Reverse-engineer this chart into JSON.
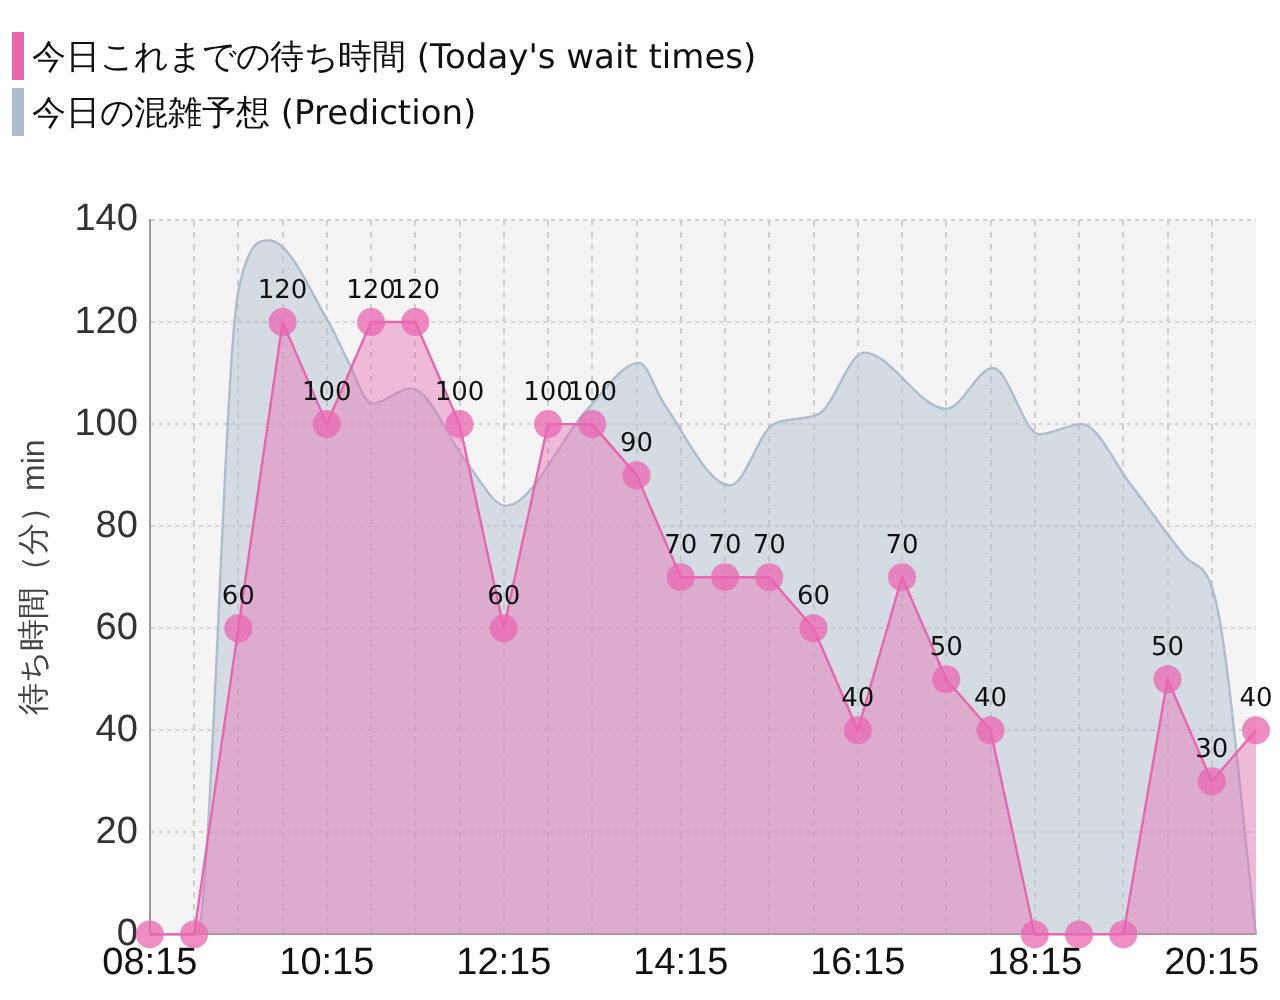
{
  "chart_data": {
    "type": "area",
    "ylabel": "待ち時間（分）min",
    "xlim": [
      8.25,
      20.75
    ],
    "ylim": [
      0,
      140
    ],
    "xticks": [
      {
        "value": 8.25,
        "label": "08:15"
      },
      {
        "value": 8.75,
        "label": null
      },
      {
        "value": 9.25,
        "label": null
      },
      {
        "value": 9.75,
        "label": null
      },
      {
        "value": 10.25,
        "label": "10:15"
      },
      {
        "value": 10.75,
        "label": null
      },
      {
        "value": 11.25,
        "label": null
      },
      {
        "value": 11.75,
        "label": null
      },
      {
        "value": 12.25,
        "label": "12:15"
      },
      {
        "value": 12.75,
        "label": null
      },
      {
        "value": 13.25,
        "label": null
      },
      {
        "value": 13.75,
        "label": null
      },
      {
        "value": 14.25,
        "label": "14:15"
      },
      {
        "value": 14.75,
        "label": null
      },
      {
        "value": 15.25,
        "label": null
      },
      {
        "value": 15.75,
        "label": null
      },
      {
        "value": 16.25,
        "label": "16:15"
      },
      {
        "value": 16.75,
        "label": null
      },
      {
        "value": 17.25,
        "label": null
      },
      {
        "value": 17.75,
        "label": null
      },
      {
        "value": 18.25,
        "label": "18:15"
      },
      {
        "value": 18.75,
        "label": null
      },
      {
        "value": 19.25,
        "label": null
      },
      {
        "value": 19.75,
        "label": null
      },
      {
        "value": 20.25,
        "label": "20:15"
      }
    ],
    "yticks": [
      0,
      20,
      40,
      60,
      80,
      100,
      120,
      140
    ],
    "grid": true,
    "legend": "top left",
    "series": [
      {
        "name": "今日これまでの待ち時間 (Today's wait times)",
        "color": "#e965b0",
        "marker": "circle",
        "x": [
          8.25,
          8.75,
          9.25,
          9.75,
          10.25,
          10.75,
          11.25,
          11.75,
          12.25,
          12.75,
          13.25,
          13.75,
          14.25,
          14.75,
          15.25,
          15.75,
          16.25,
          16.75,
          17.25,
          17.75,
          18.25,
          18.75,
          19.25,
          19.75,
          20.25,
          20.75
        ],
        "values": [
          0,
          0,
          60,
          120,
          100,
          120,
          120,
          100,
          60,
          100,
          100,
          90,
          70,
          70,
          70,
          60,
          40,
          70,
          50,
          40,
          0,
          0,
          0,
          50,
          30,
          40
        ],
        "value_labels": [
          null,
          null,
          "60",
          "120",
          "100",
          "120",
          "120",
          "100",
          "60",
          "100",
          "100",
          "90",
          "70",
          "70",
          "70",
          "60",
          "40",
          "70",
          "50",
          "40",
          null,
          null,
          null,
          "50",
          "30",
          "40"
        ]
      },
      {
        "name": "今日の混雑予想 (Prediction)",
        "color": "#aebdcc",
        "marker": "none",
        "x": [
          8.25,
          8.78,
          9.25,
          9.6,
          10.27,
          10.5,
          10.76,
          11.2,
          11.85,
          12.27,
          13.2,
          13.78,
          14.06,
          14.81,
          15.3,
          15.81,
          16.32,
          17.25,
          17.78,
          18.3,
          18.78,
          19.34,
          19.95,
          20.3,
          20.75
        ],
        "values": [
          0,
          0,
          126,
          136,
          120,
          112,
          104,
          107,
          92,
          84,
          103,
          112,
          104,
          88,
          100,
          102,
          114,
          103,
          111,
          98,
          100,
          88,
          74,
          65,
          0
        ]
      }
    ]
  }
}
